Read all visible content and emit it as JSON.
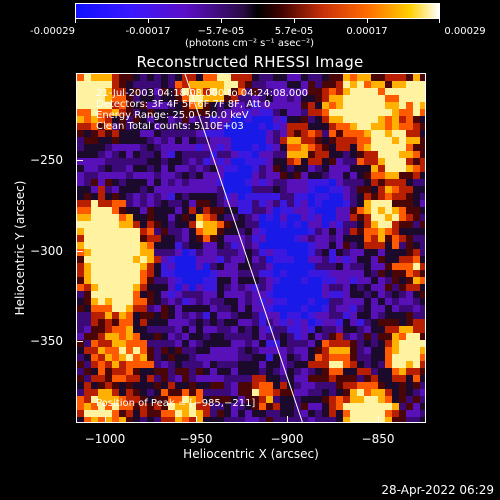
{
  "colorbar": {
    "ticks": [
      "-0.00029",
      "-0.00017",
      "−5.7e-05",
      "5.7e-05",
      "0.00017",
      "0.00029"
    ],
    "unit": "(photons cm⁻² s⁻¹ asec⁻²)"
  },
  "title": "Reconstructed RHESSI Image",
  "info": {
    "line1": "21-Jul-2003 04:18:08.000 to 04:24:08.000",
    "line2": "Detectors: 3F 4F 5F 6F 7F 8F, Att 0",
    "line3": "Energy Range: 25.0 - 50.0 keV",
    "line4": "Clean     Total counts: 5.10E+03"
  },
  "peak": "Position of Peak = [−985,−211]",
  "xaxis": {
    "label": "Heliocentric X (arcsec)",
    "ticks": [
      "−1000",
      "−950",
      "−900",
      "−850"
    ]
  },
  "yaxis": {
    "label": "Heliocentric Y (arcsec)",
    "ticks": [
      "−250",
      "−300",
      "−350"
    ]
  },
  "timestamp": "28-Apr-2022 06:29",
  "colors": {
    "background": "#000000",
    "axis": "#ffffff",
    "limb_line": "#ffffff"
  }
}
